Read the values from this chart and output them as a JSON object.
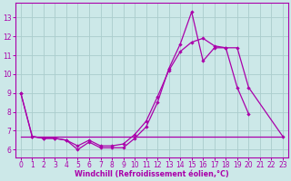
{
  "xlabel": "Windchill (Refroidissement éolien,°C)",
  "bg_color": "#cce8e8",
  "grid_color": "#aacccc",
  "line_color": "#aa00aa",
  "ylim": [
    5.6,
    13.8
  ],
  "xlim": [
    -0.5,
    23.5
  ],
  "yticks": [
    6,
    7,
    8,
    9,
    10,
    11,
    12,
    13
  ],
  "xticks": [
    0,
    1,
    2,
    3,
    4,
    5,
    6,
    7,
    8,
    9,
    10,
    11,
    12,
    13,
    14,
    15,
    16,
    17,
    18,
    19,
    20,
    21,
    22,
    23
  ],
  "spiky_x": [
    0,
    1,
    2,
    3,
    4,
    5,
    6,
    7,
    8,
    9,
    10,
    11,
    12,
    13,
    14,
    15,
    16,
    17,
    18,
    19,
    20
  ],
  "spiky_y": [
    9.0,
    6.7,
    6.6,
    6.6,
    6.5,
    6.0,
    6.4,
    6.1,
    6.1,
    6.1,
    6.6,
    7.2,
    8.5,
    10.3,
    11.6,
    13.3,
    10.7,
    11.4,
    11.4,
    9.3,
    7.9
  ],
  "smooth_x": [
    0,
    1,
    2,
    3,
    4,
    5,
    6,
    7,
    8,
    9,
    10,
    11,
    12,
    13,
    14,
    15,
    16,
    17,
    18,
    19,
    20,
    23
  ],
  "smooth_y": [
    9.0,
    6.7,
    6.6,
    6.6,
    6.5,
    6.2,
    6.5,
    6.2,
    6.2,
    6.3,
    6.8,
    7.5,
    8.8,
    10.2,
    11.2,
    11.7,
    11.9,
    11.5,
    11.4,
    11.4,
    9.3,
    6.7
  ],
  "flat_x": [
    0,
    1,
    2,
    3,
    4,
    5,
    6,
    7,
    8,
    9,
    10,
    11,
    12,
    13,
    14,
    15,
    16,
    17,
    18,
    19,
    20,
    21,
    22,
    23
  ],
  "flat_y": [
    6.7,
    6.7,
    6.7,
    6.7,
    6.7,
    6.7,
    6.7,
    6.7,
    6.7,
    6.7,
    6.7,
    6.7,
    6.7,
    6.7,
    6.7,
    6.7,
    6.7,
    6.7,
    6.7,
    6.7,
    6.7,
    6.7,
    6.7,
    6.7
  ]
}
